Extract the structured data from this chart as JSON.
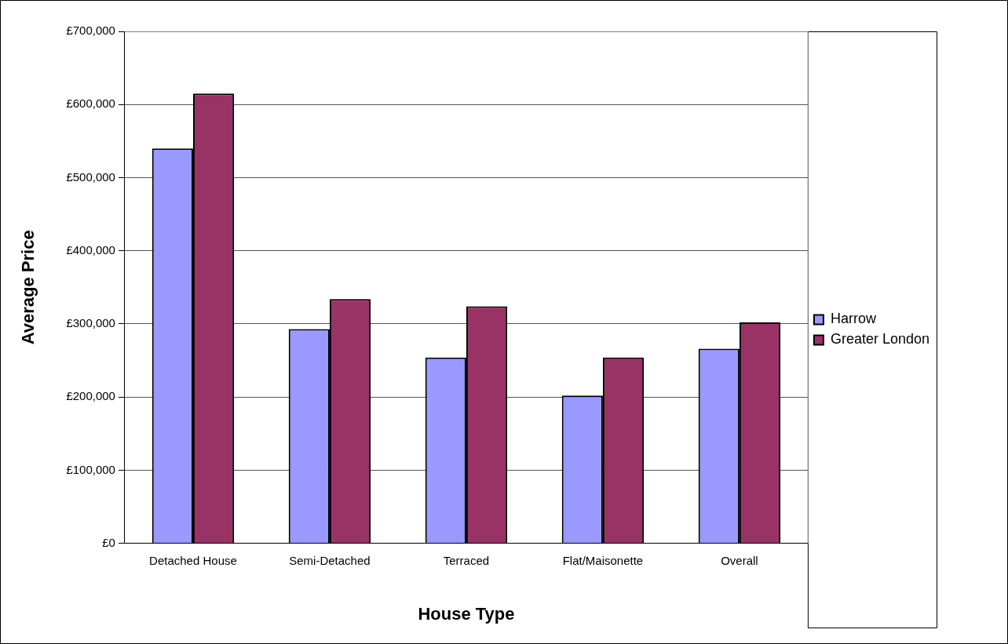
{
  "chart_data": {
    "type": "bar",
    "xlabel": "House Type",
    "ylabel": "Average Price",
    "categories": [
      "Detached House",
      "Semi-Detached",
      "Terraced",
      "Flat/Maisonette",
      "Overall"
    ],
    "series": [
      {
        "name": "Harrow",
        "color": "#9999ff",
        "values": [
          540000,
          293000,
          254000,
          202000,
          266000
        ]
      },
      {
        "name": "Greater London",
        "color": "#993366",
        "values": [
          615000,
          334000,
          324000,
          254000,
          302000
        ]
      }
    ],
    "ylim": [
      0,
      700000
    ],
    "yticks": [
      {
        "value": 0,
        "label": "£0"
      },
      {
        "value": 100000,
        "label": "£100,000"
      },
      {
        "value": 200000,
        "label": "£200,000"
      },
      {
        "value": 300000,
        "label": "£300,000"
      },
      {
        "value": 400000,
        "label": "£400,000"
      },
      {
        "value": 500000,
        "label": "£500,000"
      },
      {
        "value": 600000,
        "label": "£600,000"
      },
      {
        "value": 700000,
        "label": "£700,000"
      }
    ],
    "grid": "y",
    "legend": "right"
  }
}
